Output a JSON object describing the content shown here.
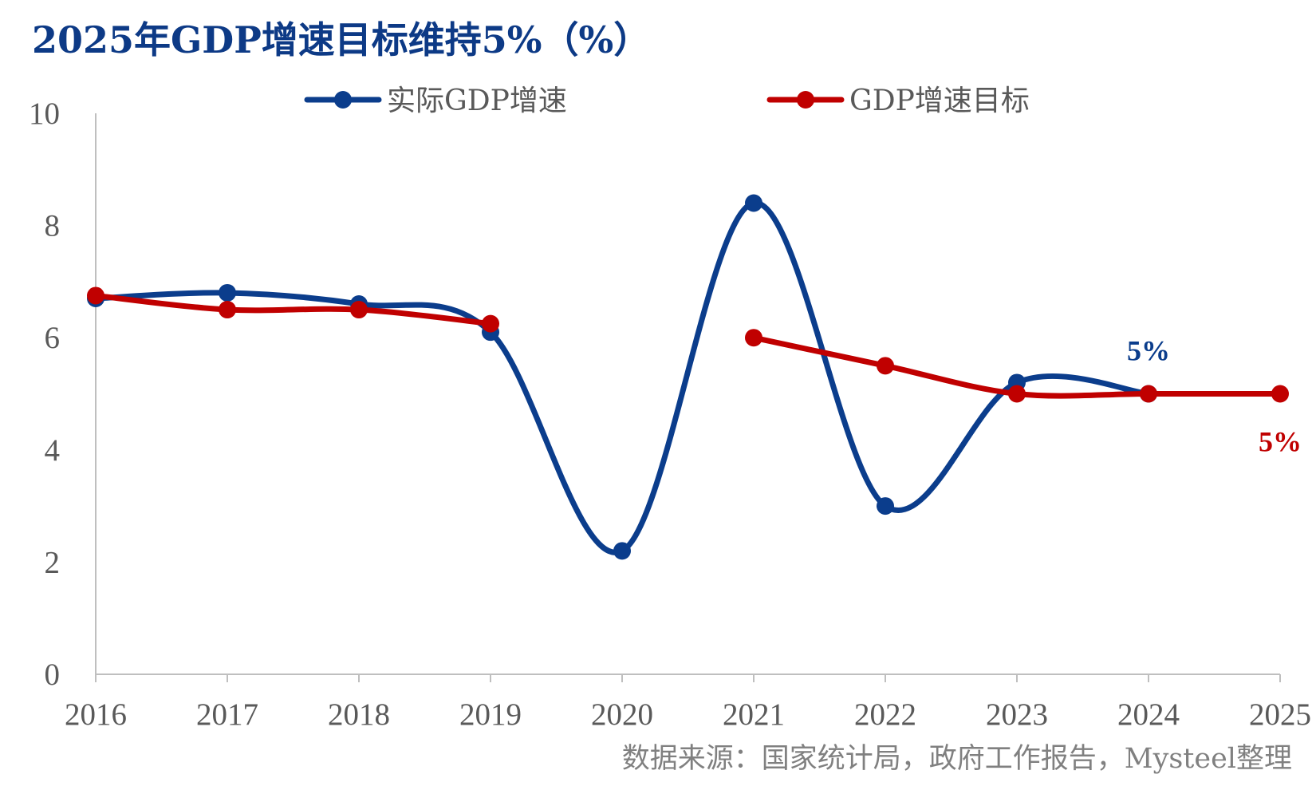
{
  "title": "2025年GDP增速目标维持5%（%）",
  "source": "数据来源：国家统计局，政府工作报告，Mysteel整理",
  "chart_data": {
    "type": "line",
    "title": "2025年GDP增速目标维持5%（%）",
    "categories": [
      "2016",
      "2017",
      "2018",
      "2019",
      "2020",
      "2021",
      "2022",
      "2023",
      "2024",
      "2025"
    ],
    "ylim": [
      0,
      10
    ],
    "yticks": [
      "0",
      "2",
      "4",
      "6",
      "8",
      "10"
    ],
    "grid": false,
    "legend_position": "top",
    "series": [
      {
        "name": "实际GDP增速",
        "color": "#0b3d8c",
        "values": [
          6.7,
          6.8,
          6.6,
          6.1,
          2.2,
          8.4,
          3.0,
          5.2,
          5.0,
          null
        ]
      },
      {
        "name": "GDP增速目标",
        "color": "#c00000",
        "values": [
          6.75,
          6.5,
          6.5,
          6.25,
          null,
          6.0,
          5.5,
          5.0,
          5.0,
          5.0
        ]
      }
    ],
    "annotations": [
      {
        "text": "5%",
        "series": 0,
        "category": "2024",
        "color": "#0b3d8c"
      },
      {
        "text": "5%",
        "series": 1,
        "category": "2025",
        "color": "#c00000"
      }
    ]
  }
}
